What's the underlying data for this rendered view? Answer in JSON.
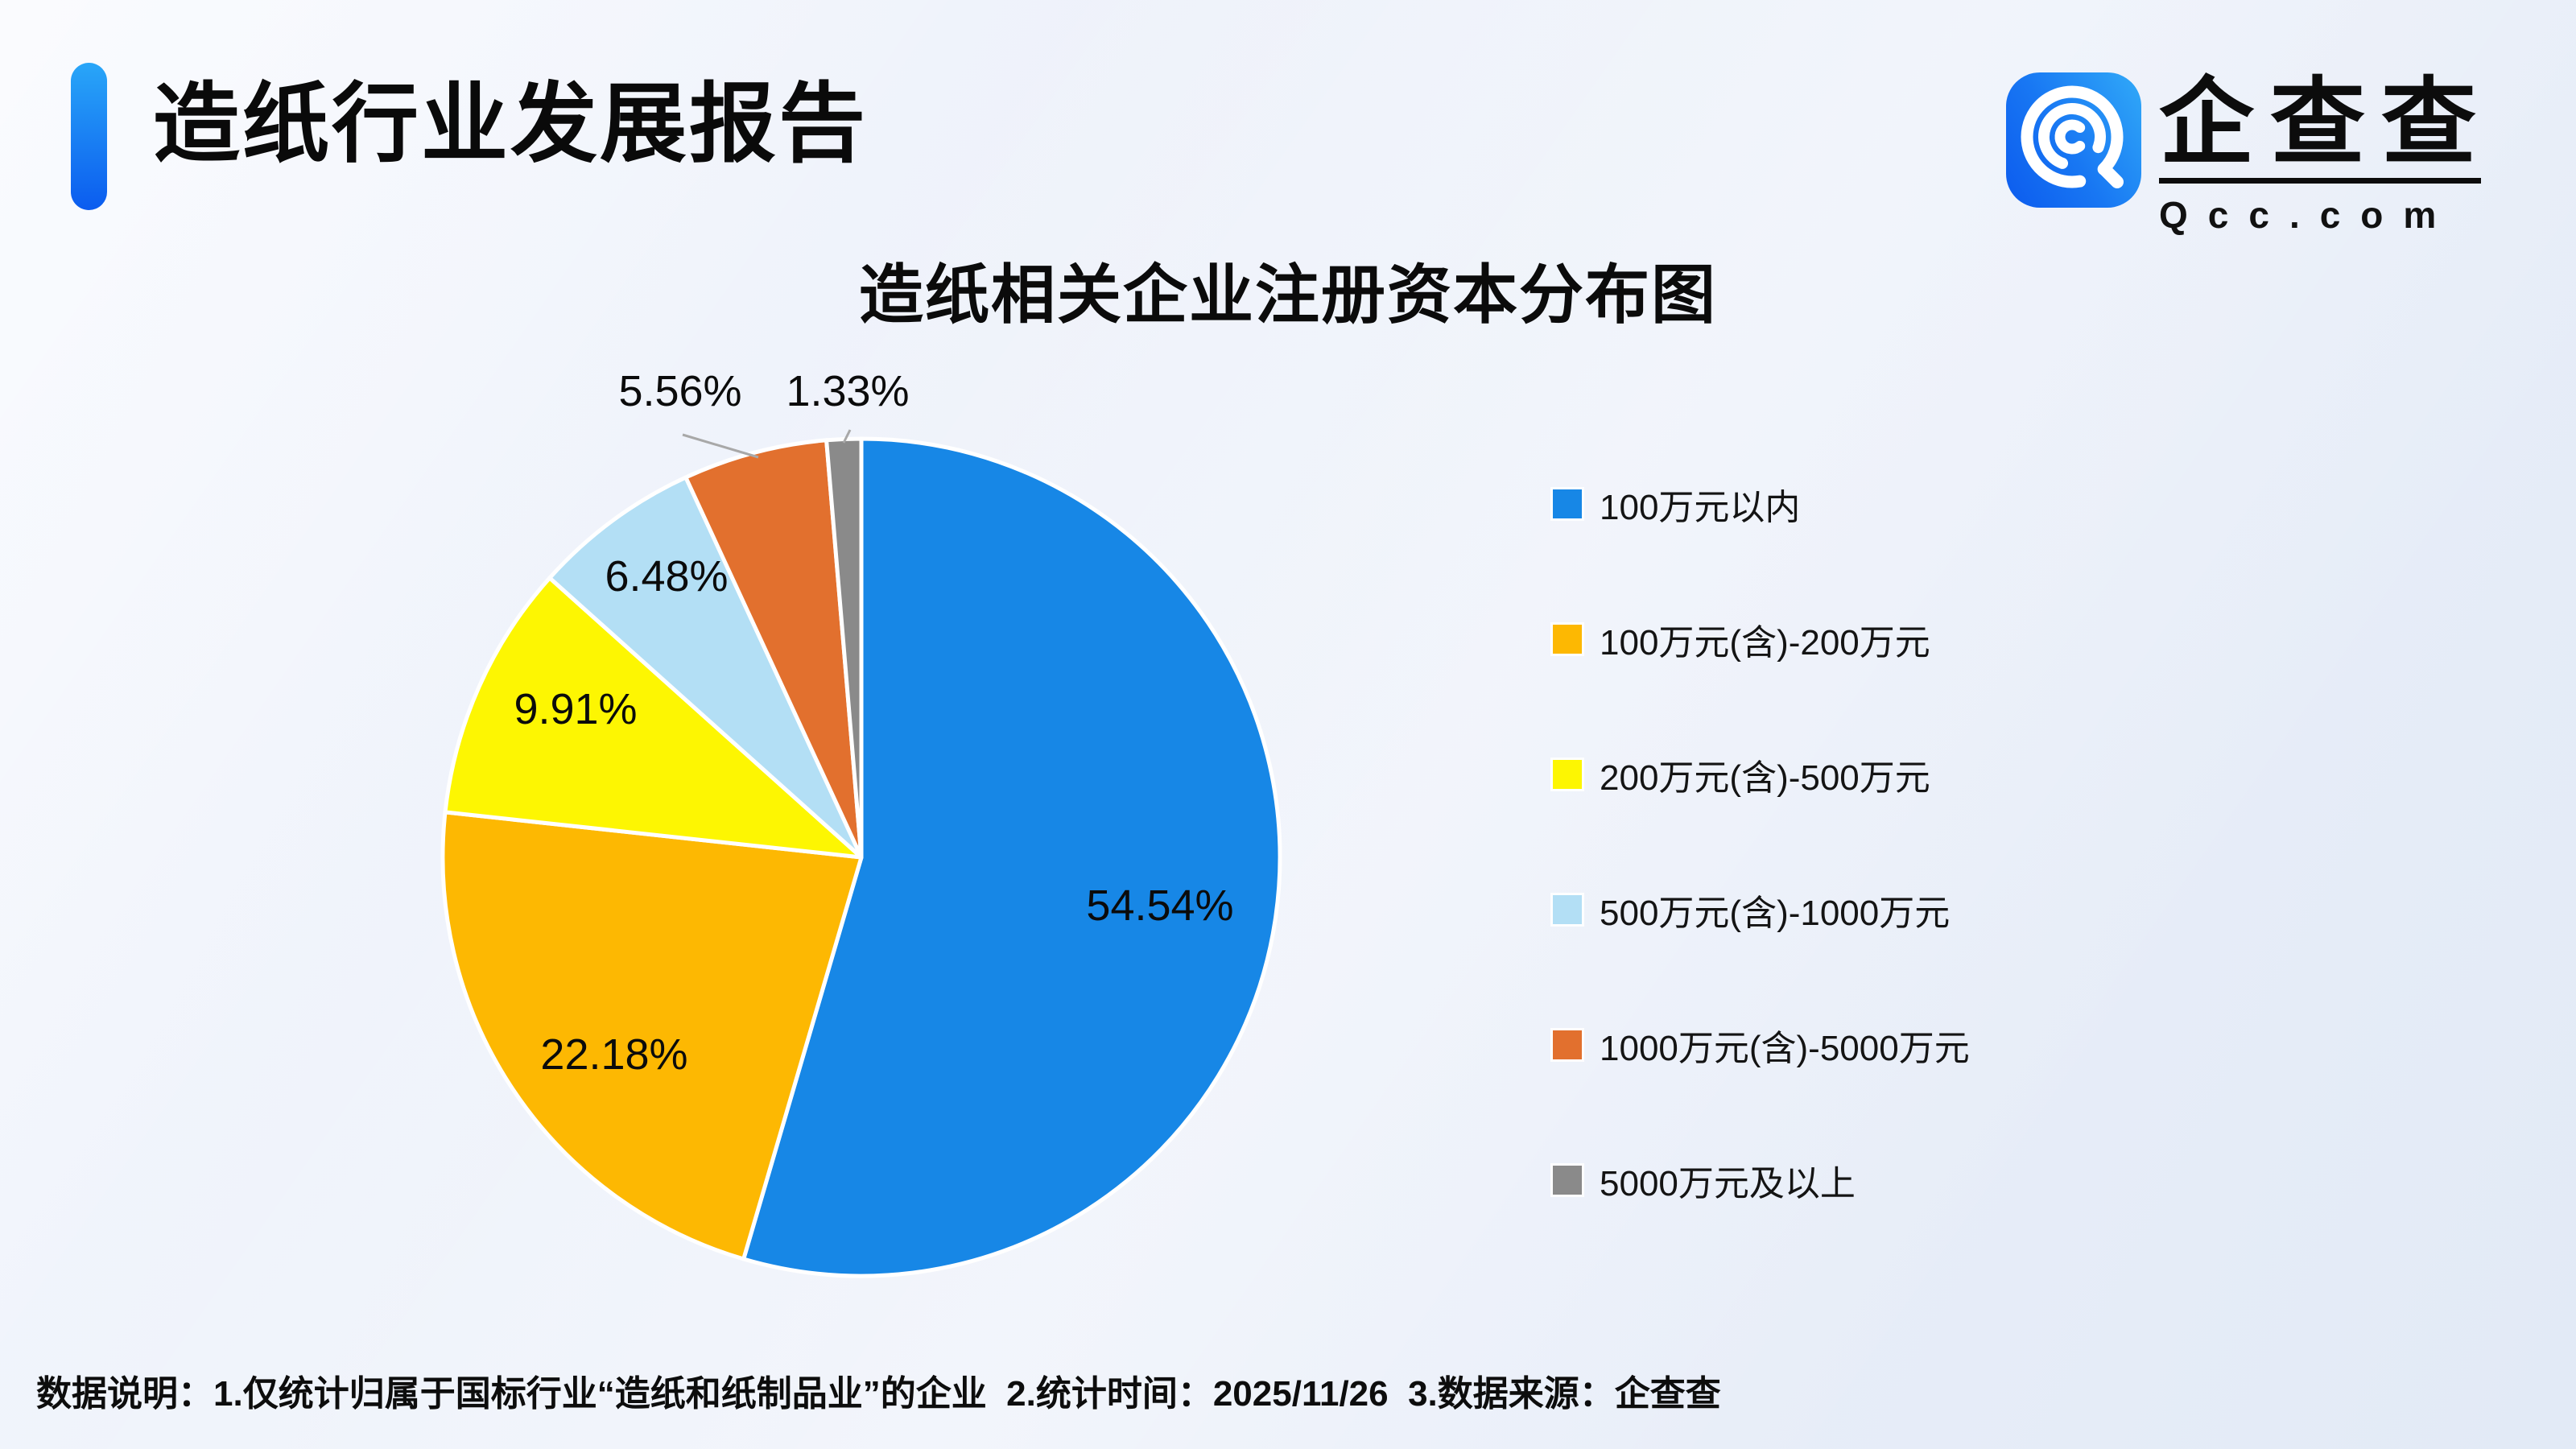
{
  "page": {
    "title": "造纸行业发展报告",
    "footer": "数据说明：1.仅统计归属于国标行业“造纸和纸制品业”的企业  2.统计时间：2025/11/26  3.数据来源：企查查"
  },
  "logo": {
    "name": "企查查",
    "domain": "Qcc.com",
    "icon": "qcc-magnifier-icon",
    "icon_gradient": [
      "#0C5BEE",
      "#31AAF8"
    ]
  },
  "theme": {
    "background": "#EDF1FA",
    "accent_bar_gradient": [
      "#29A6F8",
      "#0B5CEF"
    ],
    "text_color": "#0C0C0C",
    "leader_line_color": "#A8A8A8",
    "slice_separator_color": "#FFFFFF"
  },
  "chart_data": {
    "type": "pie",
    "title": "造纸相关企业注册资本分布图",
    "categories": [
      "100万元以内",
      "100万元(含)-200万元",
      "200万元(含)-500万元",
      "500万元(含)-1000万元",
      "1000万元(含)-5000万元",
      "5000万元及以上"
    ],
    "values": [
      54.54,
      22.18,
      9.91,
      6.48,
      5.56,
      1.33
    ],
    "display_labels": [
      "54.54%",
      "22.18%",
      "9.91%",
      "6.48%",
      "5.56%",
      "1.33%"
    ],
    "colors": [
      "#1787E6",
      "#FDB802",
      "#FDF602",
      "#B3DFF5",
      "#E2702E",
      "#8A8A8A"
    ],
    "legend_position": "right",
    "start_angle_deg": 0,
    "direction": "clockwise",
    "label_placement": [
      "inside",
      "inside",
      "inside",
      "inside",
      "outside",
      "outside"
    ]
  }
}
